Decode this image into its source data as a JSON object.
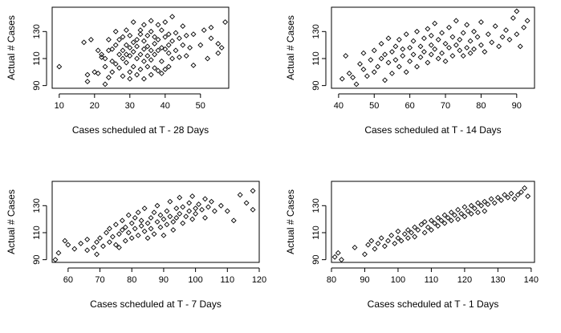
{
  "chart_data": [
    {
      "type": "scatter",
      "xlabel": "Cases scheduled at T - 28 Days",
      "ylabel": "Actual # Cases",
      "xlim": [
        8,
        58
      ],
      "ylim": [
        88,
        148
      ],
      "xticks": [
        10,
        20,
        30,
        40,
        50
      ],
      "yticks": [
        90,
        110,
        130
      ],
      "points": [
        [
          10,
          104
        ],
        [
          17,
          122
        ],
        [
          18,
          98
        ],
        [
          18,
          93
        ],
        [
          19,
          124
        ],
        [
          20,
          100
        ],
        [
          21,
          99
        ],
        [
          21,
          116
        ],
        [
          22,
          111
        ],
        [
          22,
          113
        ],
        [
          23,
          110
        ],
        [
          23,
          104
        ],
        [
          23,
          91
        ],
        [
          24,
          96
        ],
        [
          24,
          116
        ],
        [
          24,
          124
        ],
        [
          25,
          100
        ],
        [
          25,
          117
        ],
        [
          25,
          108
        ],
        [
          26,
          106
        ],
        [
          26,
          120
        ],
        [
          26,
          130
        ],
        [
          27,
          103
        ],
        [
          27,
          113
        ],
        [
          27,
          124
        ],
        [
          28,
          97
        ],
        [
          28,
          110
        ],
        [
          28,
          116
        ],
        [
          28,
          126
        ],
        [
          29,
          107
        ],
        [
          29,
          113
        ],
        [
          29,
          120
        ],
        [
          29,
          131
        ],
        [
          30,
          100
        ],
        [
          30,
          95
        ],
        [
          30,
          112
        ],
        [
          30,
          118
        ],
        [
          30,
          127
        ],
        [
          31,
          104
        ],
        [
          31,
          115
        ],
        [
          31,
          122
        ],
        [
          31,
          137
        ],
        [
          32,
          98
        ],
        [
          32,
          110
        ],
        [
          32,
          119
        ],
        [
          32,
          124
        ],
        [
          33,
          102
        ],
        [
          33,
          113
        ],
        [
          33,
          128
        ],
        [
          33,
          131
        ],
        [
          34,
          95
        ],
        [
          34,
          108
        ],
        [
          34,
          117
        ],
        [
          34,
          123
        ],
        [
          34,
          135
        ],
        [
          35,
          104
        ],
        [
          35,
          112
        ],
        [
          35,
          119
        ],
        [
          35,
          127
        ],
        [
          36,
          98
        ],
        [
          36,
          109
        ],
        [
          36,
          116
        ],
        [
          36,
          130
        ],
        [
          36,
          138
        ],
        [
          37,
          103
        ],
        [
          37,
          113
        ],
        [
          37,
          121
        ],
        [
          37,
          126
        ],
        [
          38,
          101
        ],
        [
          38,
          116
        ],
        [
          38,
          124
        ],
        [
          38,
          135
        ],
        [
          39,
          99
        ],
        [
          39,
          108
        ],
        [
          39,
          118
        ],
        [
          39,
          131
        ],
        [
          40,
          102
        ],
        [
          40,
          117
        ],
        [
          40,
          126
        ],
        [
          40,
          137
        ],
        [
          41,
          104
        ],
        [
          41,
          114
        ],
        [
          41,
          120
        ],
        [
          41,
          128
        ],
        [
          42,
          123
        ],
        [
          42,
          141
        ],
        [
          42,
          110
        ],
        [
          43,
          116
        ],
        [
          43,
          129
        ],
        [
          44,
          125
        ],
        [
          44,
          111
        ],
        [
          45,
          120
        ],
        [
          45,
          134
        ],
        [
          46,
          112
        ],
        [
          46,
          127
        ],
        [
          47,
          118
        ],
        [
          48,
          105
        ],
        [
          48,
          128
        ],
        [
          50,
          120
        ],
        [
          51,
          131
        ],
        [
          52,
          110
        ],
        [
          53,
          125
        ],
        [
          53,
          133
        ],
        [
          55,
          114
        ],
        [
          55,
          121
        ],
        [
          56,
          118
        ],
        [
          57,
          137
        ]
      ]
    },
    {
      "type": "scatter",
      "xlabel": "Cases scheduled at T - 14 Days",
      "ylabel": "Actual # Cases",
      "xlim": [
        38,
        95
      ],
      "ylim": [
        88,
        148
      ],
      "xticks": [
        40,
        50,
        60,
        70,
        80,
        90
      ],
      "yticks": [
        90,
        110,
        130
      ],
      "points": [
        [
          41,
          95
        ],
        [
          42,
          112
        ],
        [
          43,
          99
        ],
        [
          44,
          96
        ],
        [
          45,
          91
        ],
        [
          46,
          106
        ],
        [
          47,
          102
        ],
        [
          47,
          114
        ],
        [
          48,
          97
        ],
        [
          49,
          109
        ],
        [
          50,
          100
        ],
        [
          50,
          116
        ],
        [
          51,
          104
        ],
        [
          52,
          110
        ],
        [
          52,
          121
        ],
        [
          53,
          94
        ],
        [
          53,
          113
        ],
        [
          54,
          107
        ],
        [
          54,
          125
        ],
        [
          55,
          99
        ],
        [
          55,
          115
        ],
        [
          56,
          109
        ],
        [
          56,
          119
        ],
        [
          57,
          104
        ],
        [
          57,
          124
        ],
        [
          58,
          112
        ],
        [
          58,
          117
        ],
        [
          59,
          100
        ],
        [
          59,
          128
        ],
        [
          60,
          108
        ],
        [
          60,
          118
        ],
        [
          61,
          113
        ],
        [
          61,
          123
        ],
        [
          62,
          104
        ],
        [
          62,
          130
        ],
        [
          63,
          111
        ],
        [
          63,
          119
        ],
        [
          64,
          115
        ],
        [
          64,
          125
        ],
        [
          65,
          107
        ],
        [
          65,
          132
        ],
        [
          66,
          113
        ],
        [
          66,
          120
        ],
        [
          66,
          127
        ],
        [
          67,
          117
        ],
        [
          67,
          136
        ],
        [
          68,
          110
        ],
        [
          68,
          124
        ],
        [
          69,
          114
        ],
        [
          69,
          129
        ],
        [
          70,
          108
        ],
        [
          70,
          121
        ],
        [
          71,
          118
        ],
        [
          71,
          133
        ],
        [
          72,
          112
        ],
        [
          72,
          126
        ],
        [
          73,
          120
        ],
        [
          73,
          138
        ],
        [
          74,
          116
        ],
        [
          74,
          124
        ],
        [
          75,
          129
        ],
        [
          75,
          112
        ],
        [
          76,
          118
        ],
        [
          76,
          135
        ],
        [
          77,
          123
        ],
        [
          77,
          114
        ],
        [
          78,
          130
        ],
        [
          78,
          117
        ],
        [
          79,
          126
        ],
        [
          80,
          137
        ],
        [
          80,
          120
        ],
        [
          81,
          115
        ],
        [
          82,
          128
        ],
        [
          83,
          122
        ],
        [
          84,
          134
        ],
        [
          85,
          119
        ],
        [
          86,
          126
        ],
        [
          87,
          131
        ],
        [
          88,
          124
        ],
        [
          89,
          140
        ],
        [
          90,
          128
        ],
        [
          90,
          145
        ],
        [
          91,
          119
        ],
        [
          92,
          133
        ],
        [
          93,
          138
        ]
      ]
    },
    {
      "type": "scatter",
      "xlabel": "Cases scheduled at T - 7 Days",
      "ylabel": "Actual # Cases",
      "xlim": [
        55,
        120
      ],
      "ylim": [
        88,
        148
      ],
      "xticks": [
        60,
        70,
        80,
        90,
        100,
        110,
        120
      ],
      "yticks": [
        90,
        110,
        130
      ],
      "points": [
        [
          56,
          90
        ],
        [
          57,
          95
        ],
        [
          59,
          104
        ],
        [
          60,
          101
        ],
        [
          62,
          98
        ],
        [
          64,
          102
        ],
        [
          66,
          97
        ],
        [
          66,
          105
        ],
        [
          68,
          99
        ],
        [
          69,
          94
        ],
        [
          69,
          103
        ],
        [
          70,
          106
        ],
        [
          71,
          100
        ],
        [
          72,
          110
        ],
        [
          73,
          103
        ],
        [
          73,
          113
        ],
        [
          74,
          107
        ],
        [
          75,
          101
        ],
        [
          75,
          116
        ],
        [
          76,
          109
        ],
        [
          76,
          99
        ],
        [
          77,
          112
        ],
        [
          77,
          119
        ],
        [
          78,
          104
        ],
        [
          78,
          114
        ],
        [
          79,
          110
        ],
        [
          79,
          123
        ],
        [
          80,
          106
        ],
        [
          80,
          117
        ],
        [
          81,
          113
        ],
        [
          81,
          121
        ],
        [
          82,
          108
        ],
        [
          82,
          125
        ],
        [
          83,
          115
        ],
        [
          83,
          119
        ],
        [
          84,
          111
        ],
        [
          84,
          128
        ],
        [
          85,
          117
        ],
        [
          85,
          106
        ],
        [
          86,
          121
        ],
        [
          86,
          113
        ],
        [
          87,
          125
        ],
        [
          87,
          109
        ],
        [
          88,
          118
        ],
        [
          88,
          130
        ],
        [
          89,
          114
        ],
        [
          89,
          123
        ],
        [
          90,
          120
        ],
        [
          90,
          108
        ],
        [
          91,
          126
        ],
        [
          91,
          116
        ],
        [
          92,
          122
        ],
        [
          92,
          133
        ],
        [
          93,
          118
        ],
        [
          93,
          112
        ],
        [
          94,
          128
        ],
        [
          94,
          121
        ],
        [
          95,
          124
        ],
        [
          95,
          136
        ],
        [
          96,
          117
        ],
        [
          96,
          129
        ],
        [
          97,
          122
        ],
        [
          98,
          132
        ],
        [
          98,
          126
        ],
        [
          99,
          120
        ],
        [
          99,
          137
        ],
        [
          100,
          128
        ],
        [
          100,
          124
        ],
        [
          101,
          131
        ],
        [
          102,
          127
        ],
        [
          103,
          135
        ],
        [
          103,
          121
        ],
        [
          104,
          129
        ],
        [
          105,
          133
        ],
        [
          106,
          126
        ],
        [
          108,
          130
        ],
        [
          110,
          126
        ],
        [
          112,
          119
        ],
        [
          114,
          138
        ],
        [
          116,
          132
        ],
        [
          118,
          127
        ],
        [
          118,
          141
        ]
      ]
    },
    {
      "type": "scatter",
      "xlabel": "Cases scheduled at T - 1 Days",
      "ylabel": "Actual # Cases",
      "xlim": [
        80,
        141
      ],
      "ylim": [
        88,
        148
      ],
      "xticks": [
        80,
        90,
        100,
        110,
        120,
        130,
        140
      ],
      "yticks": [
        90,
        110,
        130
      ],
      "points": [
        [
          81,
          92
        ],
        [
          82,
          95
        ],
        [
          83,
          90
        ],
        [
          87,
          99
        ],
        [
          90,
          94
        ],
        [
          91,
          101
        ],
        [
          92,
          104
        ],
        [
          93,
          98
        ],
        [
          94,
          102
        ],
        [
          95,
          106
        ],
        [
          96,
          100
        ],
        [
          97,
          104
        ],
        [
          98,
          108
        ],
        [
          99,
          102
        ],
        [
          100,
          106
        ],
        [
          100,
          111
        ],
        [
          101,
          104
        ],
        [
          102,
          109
        ],
        [
          103,
          112
        ],
        [
          103,
          106
        ],
        [
          104,
          110
        ],
        [
          105,
          114
        ],
        [
          105,
          107
        ],
        [
          106,
          112
        ],
        [
          107,
          116
        ],
        [
          108,
          110
        ],
        [
          108,
          118
        ],
        [
          109,
          114
        ],
        [
          110,
          119
        ],
        [
          110,
          112
        ],
        [
          111,
          117
        ],
        [
          112,
          121
        ],
        [
          112,
          115
        ],
        [
          113,
          119
        ],
        [
          114,
          123
        ],
        [
          114,
          117
        ],
        [
          115,
          121
        ],
        [
          116,
          125
        ],
        [
          116,
          119
        ],
        [
          117,
          123
        ],
        [
          118,
          127
        ],
        [
          118,
          120
        ],
        [
          119,
          124
        ],
        [
          120,
          129
        ],
        [
          120,
          122
        ],
        [
          121,
          126
        ],
        [
          122,
          130
        ],
        [
          122,
          124
        ],
        [
          123,
          128
        ],
        [
          124,
          132
        ],
        [
          124,
          125
        ],
        [
          125,
          130
        ],
        [
          126,
          133
        ],
        [
          126,
          126
        ],
        [
          127,
          131
        ],
        [
          128,
          135
        ],
        [
          129,
          132
        ],
        [
          130,
          136
        ],
        [
          131,
          134
        ],
        [
          132,
          138
        ],
        [
          133,
          136
        ],
        [
          134,
          139
        ],
        [
          135,
          135
        ],
        [
          136,
          138
        ],
        [
          137,
          140
        ],
        [
          138,
          143
        ],
        [
          139,
          137
        ]
      ]
    }
  ]
}
